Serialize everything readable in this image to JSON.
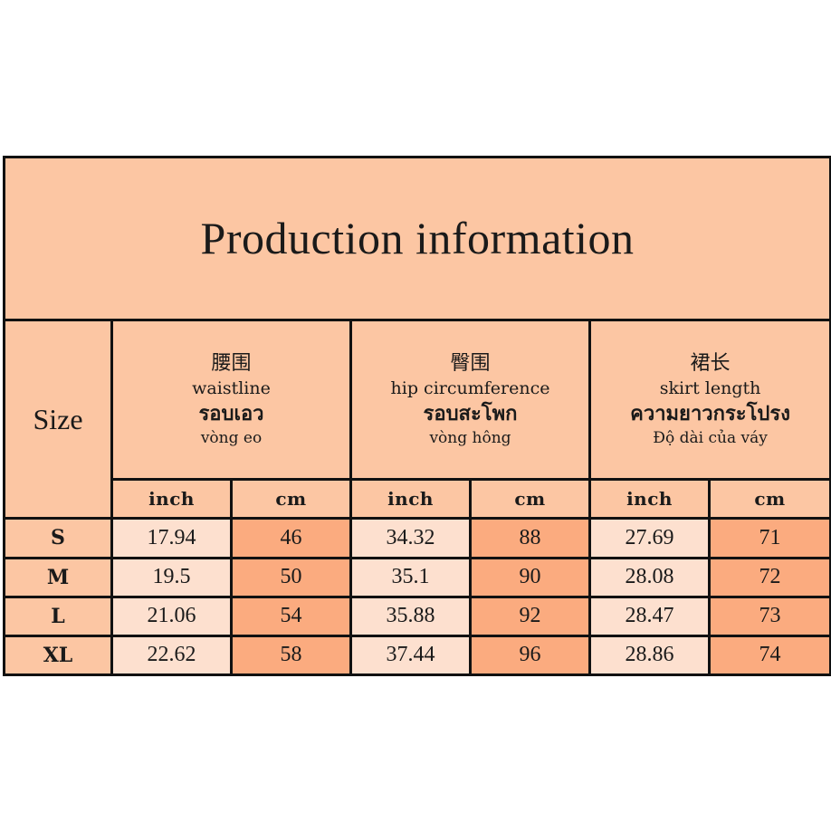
{
  "title": "Production information",
  "size_label": "Size",
  "measures": [
    {
      "cn": "腰围",
      "en": "waistline",
      "th": "รอบเอว",
      "vi": "vòng eo"
    },
    {
      "cn": "臀围",
      "en": "hip circumference",
      "th": "รอบสะโพก",
      "vi": "vòng hông"
    },
    {
      "cn": "裙长",
      "en": "skirt length",
      "th": "ความยาวกระโปรง",
      "vi": "Độ dài của váy"
    }
  ],
  "units": {
    "inch": "inch",
    "cm": "cm"
  },
  "rows": [
    {
      "size": "S",
      "waist_inch": "17.94",
      "waist_cm": "46",
      "hip_inch": "34.32",
      "hip_cm": "88",
      "length_inch": "27.69",
      "length_cm": "71"
    },
    {
      "size": "M",
      "waist_inch": "19.5",
      "waist_cm": "50",
      "hip_inch": "35.1",
      "hip_cm": "90",
      "length_inch": "28.08",
      "length_cm": "72"
    },
    {
      "size": "L",
      "waist_inch": "21.06",
      "waist_cm": "54",
      "hip_inch": "35.88",
      "hip_cm": "92",
      "length_inch": "28.47",
      "length_cm": "73"
    },
    {
      "size": "XL",
      "waist_inch": "22.62",
      "waist_cm": "58",
      "hip_inch": "37.44",
      "hip_cm": "96",
      "length_inch": "28.86",
      "length_cm": "74"
    }
  ],
  "colors": {
    "header_bg": "#fcc6a3",
    "inch_cell_bg": "#fde0cf",
    "cm_cell_bg": "#fbab7f",
    "border": "#111111"
  }
}
